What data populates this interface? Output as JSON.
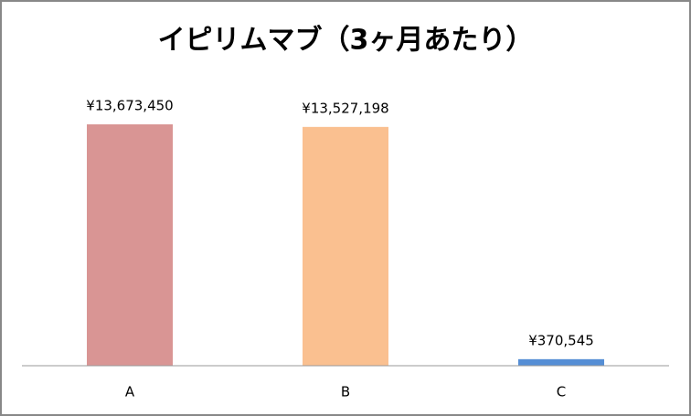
{
  "chart_data": {
    "type": "bar",
    "title": "イピリムマブ（3ヶ月あたり）",
    "categories": [
      "A",
      "B",
      "C"
    ],
    "values": [
      13673450,
      13527198,
      370545
    ],
    "value_labels": [
      "¥13,673,450",
      "¥13,527,198",
      "¥370,545"
    ],
    "colors": [
      "#d99594",
      "#fac090",
      "#558ed5"
    ]
  }
}
